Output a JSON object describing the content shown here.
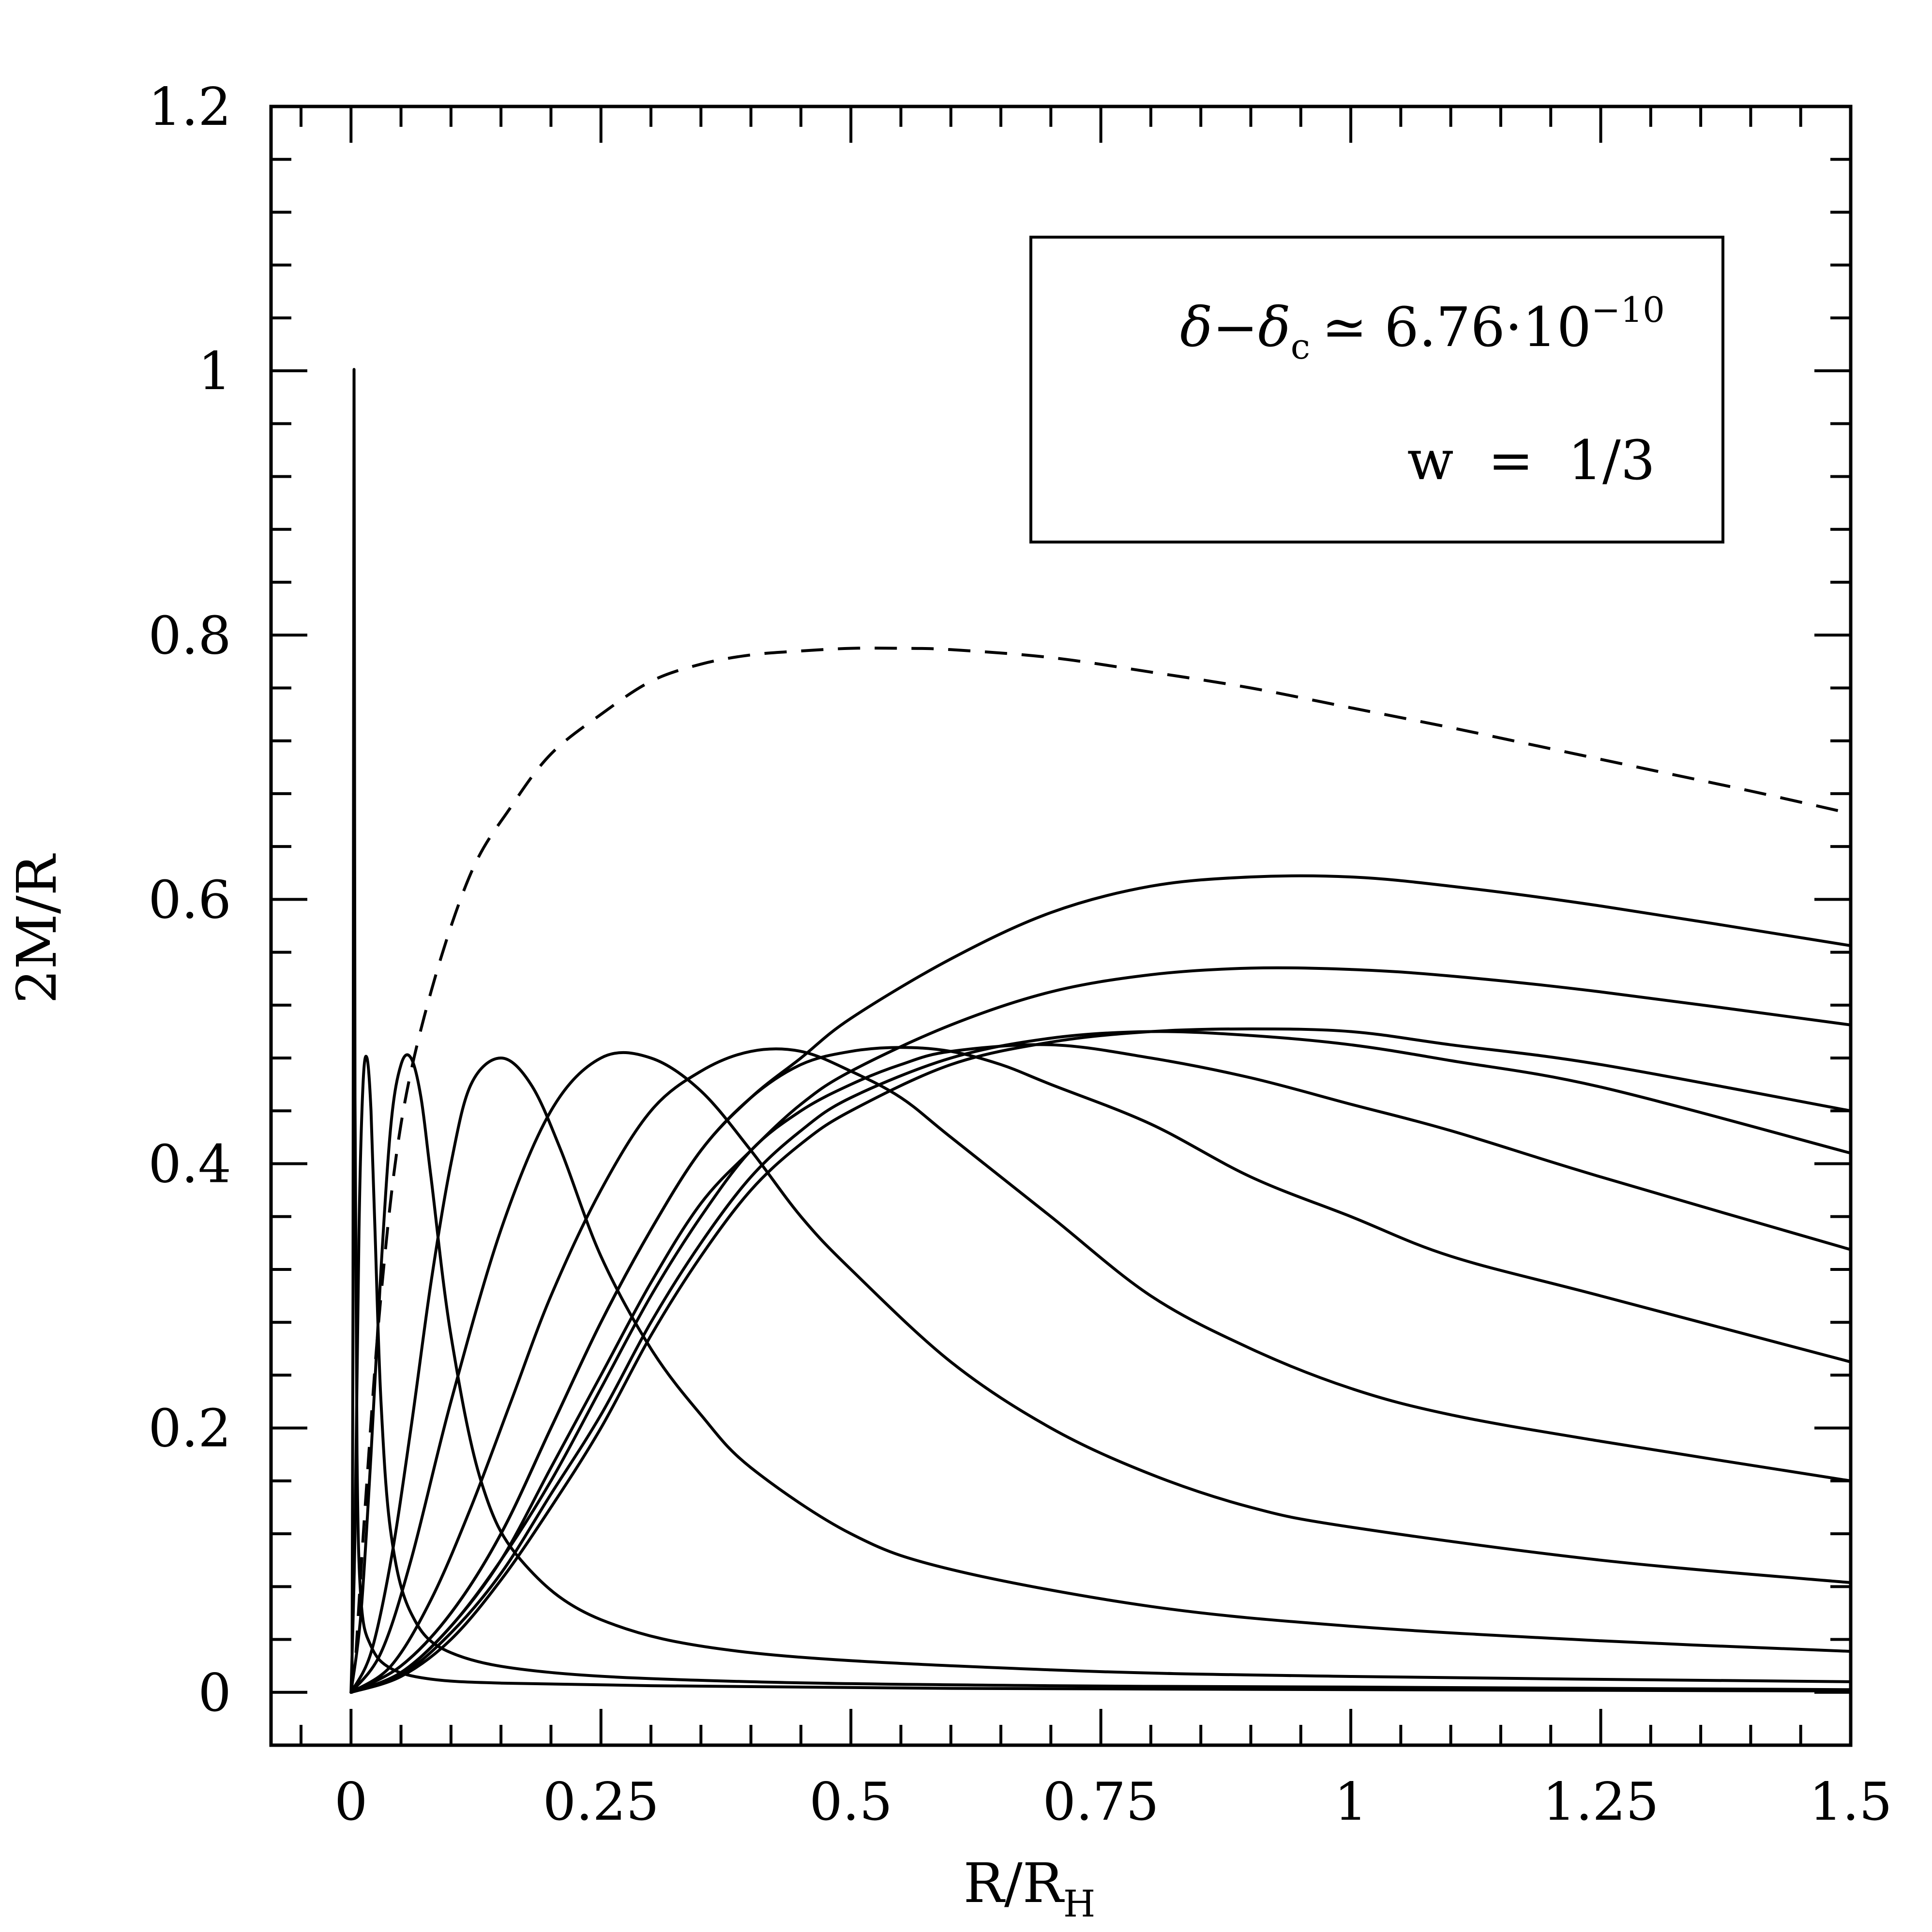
{
  "chart_data": {
    "type": "line",
    "title": "",
    "xlabel": "R/R",
    "xlabel_sub": "H",
    "ylabel": "2M/R",
    "xlim": [
      -0.08,
      1.5
    ],
    "ylim": [
      -0.04,
      1.2
    ],
    "xticks": [
      0,
      0.25,
      0.5,
      0.75,
      1,
      1.25,
      1.5
    ],
    "xtick_labels": [
      "0",
      "0.25",
      "0.5",
      "0.75",
      "1",
      "1.25",
      "1.5"
    ],
    "yticks": [
      0,
      0.2,
      0.4,
      0.6,
      0.8,
      1,
      1.2
    ],
    "ytick_labels": [
      "0",
      "0.2",
      "0.4",
      "0.6",
      "0.8",
      "1",
      "1.2"
    ],
    "grid": false,
    "legend_position": "top-right",
    "annotations": {
      "delta_expr_left": "δ−δ",
      "delta_sub": "c",
      "delta_expr_right": "≃ 6.76·10",
      "delta_sup": "−10",
      "w_line": "w  =  1/3"
    },
    "series": [
      {
        "style": "dashed",
        "x": [
          0.005,
          0.015,
          0.03,
          0.05,
          0.08,
          0.12,
          0.16,
          0.2,
          0.25,
          0.3,
          0.35,
          0.4,
          0.45,
          0.5,
          0.55,
          0.6,
          0.7,
          0.8,
          0.9,
          1.0,
          1.1,
          1.2,
          1.3,
          1.4,
          1.5
        ],
        "y": [
          0.03,
          0.15,
          0.3,
          0.43,
          0.53,
          0.62,
          0.67,
          0.71,
          0.74,
          0.765,
          0.778,
          0.785,
          0.788,
          0.79,
          0.79,
          0.789,
          0.783,
          0.772,
          0.76,
          0.745,
          0.73,
          0.714,
          0.698,
          0.682,
          0.665
        ]
      },
      {
        "style": "solid",
        "x": [
          0.001,
          0.002,
          0.003,
          0.004,
          0.006,
          0.01,
          0.02,
          0.04,
          0.08,
          0.15,
          0.3,
          0.6,
          1.0,
          1.5
        ],
        "y": [
          0.0,
          0.3,
          1.0,
          0.45,
          0.18,
          0.07,
          0.035,
          0.018,
          0.01,
          0.007,
          0.005,
          0.003,
          0.002,
          0.001
        ]
      },
      {
        "style": "solid",
        "x": [
          0.0,
          0.004,
          0.008,
          0.012,
          0.016,
          0.02,
          0.024,
          0.03,
          0.04,
          0.06,
          0.1,
          0.2,
          0.4,
          0.7,
          1.0,
          1.5
        ],
        "y": [
          0.0,
          0.12,
          0.35,
          0.46,
          0.48,
          0.44,
          0.35,
          0.22,
          0.12,
          0.06,
          0.03,
          0.015,
          0.008,
          0.005,
          0.004,
          0.002
        ]
      },
      {
        "style": "solid",
        "x": [
          0.0,
          0.01,
          0.02,
          0.03,
          0.04,
          0.05,
          0.06,
          0.07,
          0.08,
          0.1,
          0.13,
          0.17,
          0.25,
          0.4,
          0.7,
          1.0,
          1.5
        ],
        "y": [
          0.0,
          0.06,
          0.18,
          0.32,
          0.43,
          0.475,
          0.48,
          0.45,
          0.39,
          0.27,
          0.16,
          0.1,
          0.055,
          0.03,
          0.017,
          0.012,
          0.008
        ]
      },
      {
        "style": "solid",
        "x": [
          0.0,
          0.02,
          0.04,
          0.06,
          0.08,
          0.1,
          0.12,
          0.15,
          0.18,
          0.21,
          0.25,
          0.3,
          0.35,
          0.4,
          0.5,
          0.6,
          0.8,
          1.0,
          1.25,
          1.5
        ],
        "y": [
          0.0,
          0.03,
          0.1,
          0.2,
          0.31,
          0.4,
          0.46,
          0.48,
          0.46,
          0.41,
          0.33,
          0.26,
          0.21,
          0.17,
          0.12,
          0.093,
          0.065,
          0.05,
          0.039,
          0.031
        ]
      },
      {
        "style": "solid",
        "x": [
          0.0,
          0.03,
          0.06,
          0.1,
          0.15,
          0.2,
          0.25,
          0.3,
          0.35,
          0.4,
          0.45,
          0.5,
          0.6,
          0.7,
          0.8,
          0.9,
          1.0,
          1.25,
          1.5
        ],
        "y": [
          0.0,
          0.03,
          0.1,
          0.22,
          0.35,
          0.44,
          0.48,
          0.48,
          0.455,
          0.41,
          0.36,
          0.32,
          0.25,
          0.2,
          0.165,
          0.14,
          0.125,
          0.1,
          0.083
        ]
      },
      {
        "style": "solid",
        "x": [
          0.0,
          0.04,
          0.08,
          0.12,
          0.16,
          0.2,
          0.25,
          0.3,
          0.35,
          0.4,
          0.45,
          0.5,
          0.55,
          0.6,
          0.7,
          0.8,
          0.9,
          1.0,
          1.1,
          1.25,
          1.5
        ],
        "y": [
          0.0,
          0.02,
          0.07,
          0.14,
          0.22,
          0.3,
          0.38,
          0.44,
          0.47,
          0.485,
          0.485,
          0.47,
          0.45,
          0.42,
          0.36,
          0.3,
          0.26,
          0.23,
          0.21,
          0.19,
          0.16
        ]
      },
      {
        "style": "solid",
        "x": [
          0.0,
          0.05,
          0.1,
          0.15,
          0.2,
          0.25,
          0.3,
          0.35,
          0.4,
          0.45,
          0.5,
          0.55,
          0.6,
          0.65,
          0.7,
          0.8,
          0.9,
          1.0,
          1.1,
          1.25,
          1.5
        ],
        "y": [
          0.0,
          0.02,
          0.06,
          0.12,
          0.2,
          0.28,
          0.35,
          0.41,
          0.45,
          0.475,
          0.485,
          0.488,
          0.485,
          0.475,
          0.46,
          0.43,
          0.39,
          0.36,
          0.33,
          0.3,
          0.25
        ]
      },
      {
        "style": "solid",
        "x": [
          0.0,
          0.05,
          0.1,
          0.15,
          0.2,
          0.25,
          0.3,
          0.35,
          0.4,
          0.45,
          0.5,
          0.55,
          0.6,
          0.7,
          0.8,
          0.9,
          1.0,
          1.1,
          1.25,
          1.5
        ],
        "y": [
          0.0,
          0.015,
          0.05,
          0.1,
          0.16,
          0.23,
          0.3,
          0.36,
          0.41,
          0.44,
          0.46,
          0.475,
          0.485,
          0.49,
          0.48,
          0.465,
          0.445,
          0.425,
          0.39,
          0.335
        ]
      },
      {
        "style": "solid",
        "x": [
          0.0,
          0.05,
          0.1,
          0.15,
          0.2,
          0.25,
          0.3,
          0.35,
          0.4,
          0.45,
          0.5,
          0.6,
          0.7,
          0.8,
          0.9,
          1.0,
          1.1,
          1.25,
          1.5
        ],
        "y": [
          0.0,
          0.013,
          0.045,
          0.09,
          0.15,
          0.21,
          0.28,
          0.34,
          0.39,
          0.425,
          0.45,
          0.48,
          0.495,
          0.5,
          0.497,
          0.49,
          0.478,
          0.458,
          0.408
        ]
      },
      {
        "style": "solid",
        "x": [
          0.0,
          0.05,
          0.1,
          0.15,
          0.2,
          0.25,
          0.3,
          0.35,
          0.4,
          0.45,
          0.5,
          0.6,
          0.7,
          0.8,
          0.9,
          1.0,
          1.1,
          1.25,
          1.5
        ],
        "y": [
          0.0,
          0.012,
          0.04,
          0.085,
          0.14,
          0.2,
          0.27,
          0.33,
          0.38,
          0.415,
          0.44,
          0.475,
          0.492,
          0.5,
          0.502,
          0.5,
          0.49,
          0.475,
          0.44
        ]
      },
      {
        "style": "solid",
        "x": [
          0.0,
          0.05,
          0.1,
          0.15,
          0.2,
          0.25,
          0.3,
          0.35,
          0.4,
          0.45,
          0.5,
          0.6,
          0.7,
          0.8,
          0.9,
          1.0,
          1.1,
          1.25,
          1.5
        ],
        "y": [
          0.0,
          0.015,
          0.05,
          0.1,
          0.17,
          0.24,
          0.31,
          0.37,
          0.41,
          0.445,
          0.47,
          0.505,
          0.53,
          0.543,
          0.548,
          0.547,
          0.542,
          0.53,
          0.505
        ]
      },
      {
        "style": "solid",
        "x": [
          0.0,
          0.05,
          0.1,
          0.15,
          0.2,
          0.25,
          0.3,
          0.35,
          0.4,
          0.45,
          0.5,
          0.6,
          0.7,
          0.8,
          0.9,
          1.0,
          1.1,
          1.25,
          1.5
        ],
        "y": [
          0.0,
          0.02,
          0.06,
          0.12,
          0.2,
          0.28,
          0.35,
          0.41,
          0.45,
          0.48,
          0.51,
          0.555,
          0.59,
          0.61,
          0.617,
          0.617,
          0.61,
          0.595,
          0.565
        ]
      }
    ]
  }
}
